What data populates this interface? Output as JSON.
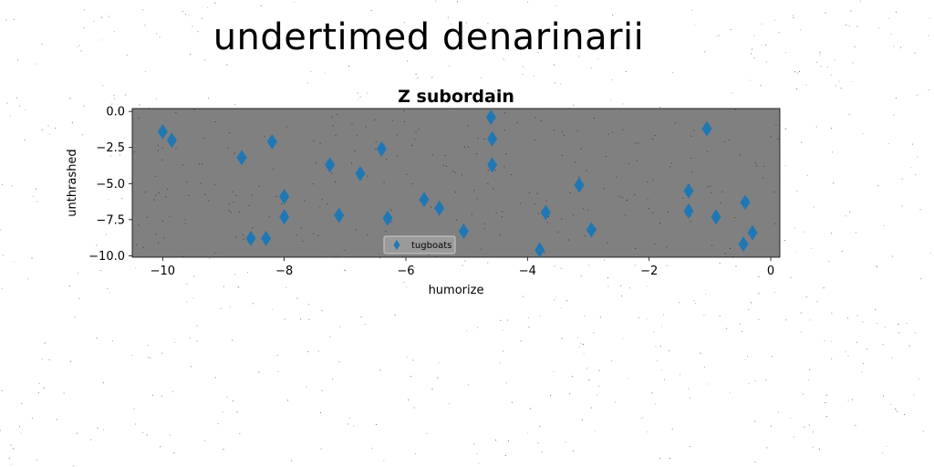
{
  "page": {
    "title": "undertimed denarinarii"
  },
  "colors": {
    "plot_background": "#808080",
    "marker": "#1f77b4",
    "page_background": "#ffffff"
  },
  "chart_data": {
    "type": "scatter",
    "title": "Z subordain",
    "xlabel": "humorize",
    "ylabel": "unthrashed",
    "xlim": [
      -10.5,
      0.15
    ],
    "ylim": [
      -10.1,
      0.2
    ],
    "xticks": [
      -10,
      -8,
      -6,
      -4,
      -2,
      0
    ],
    "xtick_labels": [
      "−10",
      "−8",
      "−6",
      "−4",
      "−2",
      "0"
    ],
    "yticks": [
      0.0,
      -2.5,
      -5.0,
      -7.5,
      -10.0
    ],
    "ytick_labels": [
      "0.0",
      "−2.5",
      "−5.0",
      "−7.5",
      "−10.0"
    ],
    "legend_position": "lower-center",
    "grid": false,
    "series": [
      {
        "name": "tugboats",
        "marker": "thin-diamond",
        "x": [
          -10.0,
          -9.85,
          -8.7,
          -8.55,
          -8.2,
          -8.3,
          -8.0,
          -8.0,
          -7.25,
          -7.1,
          -6.75,
          -6.4,
          -6.3,
          -5.7,
          -5.45,
          -5.05,
          -4.6,
          -4.58,
          -4.58,
          -3.8,
          -3.7,
          -3.15,
          -2.95,
          -1.35,
          -1.35,
          -1.05,
          -0.9,
          -0.42,
          -0.45,
          -0.3
        ],
        "y": [
          -1.4,
          -2.0,
          -3.2,
          -8.8,
          -2.1,
          -8.8,
          -5.9,
          -7.3,
          -3.7,
          -7.2,
          -4.3,
          -2.6,
          -7.4,
          -6.1,
          -6.7,
          -8.3,
          -0.4,
          -1.9,
          -3.7,
          -9.6,
          -7.0,
          -5.1,
          -8.2,
          -5.5,
          -6.9,
          -1.2,
          -7.3,
          -6.3,
          -9.2,
          -8.4
        ]
      }
    ]
  }
}
